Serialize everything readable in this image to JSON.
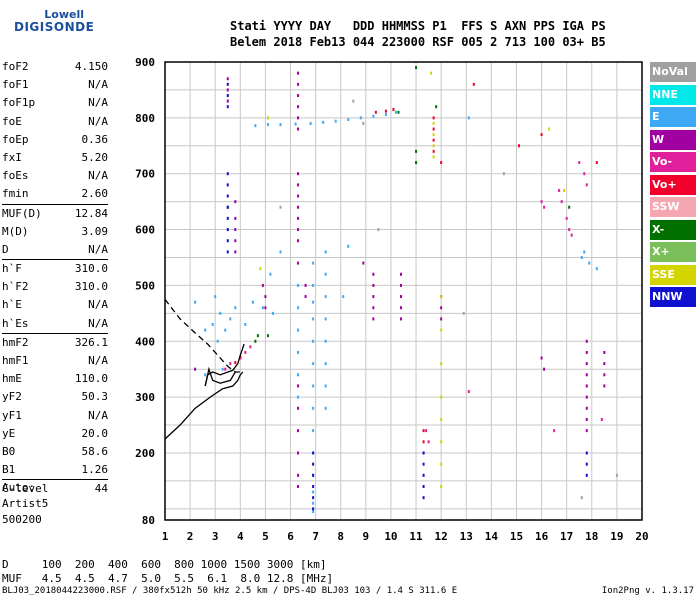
{
  "logo": {
    "line1": "Lowell",
    "line2": "DIGISONDE"
  },
  "header": {
    "line1": "Stati YYYY DAY   DDD HHMMSS P1  FFS S AXN PPS IGA PS",
    "line2": "Belem 2018 Feb13 044 223000 RSF 005 2 713 100 03+ B5"
  },
  "params": [
    [
      [
        "foF2",
        "4.150"
      ],
      [
        "foF1",
        "N/A"
      ],
      [
        "foF1p",
        "N/A"
      ],
      [
        "foE",
        "N/A"
      ],
      [
        "foEp",
        "0.36"
      ],
      [
        "fxI",
        "5.20"
      ],
      [
        "foEs",
        "N/A"
      ],
      [
        "fmin",
        "2.60"
      ]
    ],
    [
      [
        "MUF(D)",
        "12.84"
      ],
      [
        "M(D)",
        "3.09"
      ],
      [
        "D",
        "N/A"
      ]
    ],
    [
      [
        "h`F",
        "310.0"
      ],
      [
        "h`F2",
        "310.0"
      ],
      [
        "h`E",
        "N/A"
      ],
      [
        "h`Es",
        "N/A"
      ]
    ],
    [
      [
        "hmF2",
        "326.1"
      ],
      [
        "hmF1",
        "N/A"
      ],
      [
        "hmE",
        "110.0"
      ],
      [
        "yF2",
        "50.3"
      ],
      [
        "yF1",
        "N/A"
      ],
      [
        "yE",
        "20.0"
      ],
      [
        "B0",
        "58.6"
      ],
      [
        "B1",
        "1.26"
      ]
    ],
    [
      [
        "C-level",
        "44"
      ]
    ]
  ],
  "auto_lines": [
    "Auto:",
    "Artist5",
    "500200"
  ],
  "muf_table": {
    "d_line": "D     100  200  400  600  800 1000 1500 3000 [km]",
    "muf_line": "MUF   4.5  4.5  4.7  5.0  5.5  6.1  8.0 12.8 [MHz]"
  },
  "footer_left": "BLJ03_2018044223000.RSF / 380fx512h 50 kHz 2.5 km / DPS-4D BLJ03 103 / 1.4 S 311.6 E",
  "footer_right": "Ion2Png v. 1.3.17",
  "legend": [
    {
      "label": "NoVal",
      "color": "#a0a0a0"
    },
    {
      "label": "NNE",
      "color": "#00e8e8"
    },
    {
      "label": "E",
      "color": "#3fa9f5"
    },
    {
      "label": "W",
      "color": "#a000a0"
    },
    {
      "label": "Vo-",
      "color": "#e0209a"
    },
    {
      "label": "Vo+",
      "color": "#f0002a"
    },
    {
      "label": "SSW",
      "color": "#f4a7b0"
    },
    {
      "label": "X-",
      "color": "#007000"
    },
    {
      "label": "X+",
      "color": "#7abf5a"
    },
    {
      "label": "SSE",
      "color": "#d4d400"
    },
    {
      "label": "NNW",
      "color": "#1010d0"
    }
  ],
  "chart_data": {
    "type": "scatter",
    "xlabel": "",
    "ylabel": "",
    "xlim": [
      1,
      20
    ],
    "ylim": [
      80,
      900
    ],
    "x_ticks": [
      "1",
      "2",
      "3",
      "4",
      "5",
      "6",
      "7",
      "8",
      "9",
      "10",
      "11",
      "12",
      "13",
      "14",
      "15",
      "16",
      "17",
      "18",
      "19",
      "20"
    ],
    "y_ticks": [
      "80",
      "200",
      "300",
      "400",
      "500",
      "600",
      "700",
      "800",
      "900"
    ],
    "y_tick_values": [
      80,
      200,
      300,
      400,
      500,
      600,
      700,
      800,
      900
    ],
    "grid": true,
    "series": [
      {
        "color": "#3fa9f5",
        "points": [
          [
            4.6,
            786
          ],
          [
            5.1,
            788
          ],
          [
            5.6,
            788
          ],
          [
            6.2,
            789
          ],
          [
            6.8,
            790
          ],
          [
            7.3,
            792
          ],
          [
            7.8,
            794
          ],
          [
            8.3,
            797
          ],
          [
            8.8,
            800
          ],
          [
            9.3,
            803
          ],
          [
            9.8,
            806
          ],
          [
            10.2,
            810
          ],
          [
            3.0,
            480
          ],
          [
            3.2,
            450
          ],
          [
            3.4,
            420
          ],
          [
            3.6,
            440
          ],
          [
            3.8,
            460
          ],
          [
            4.2,
            430
          ],
          [
            4.5,
            470
          ],
          [
            4.9,
            460
          ],
          [
            5.3,
            450
          ],
          [
            2.6,
            420
          ],
          [
            2.9,
            430
          ],
          [
            3.1,
            400
          ],
          [
            6.9,
            540
          ],
          [
            6.9,
            500
          ],
          [
            6.9,
            470
          ],
          [
            6.9,
            440
          ],
          [
            6.9,
            400
          ],
          [
            6.9,
            360
          ],
          [
            6.9,
            320
          ],
          [
            6.9,
            280
          ],
          [
            6.9,
            240
          ],
          [
            6.9,
            200
          ],
          [
            6.9,
            160
          ],
          [
            6.9,
            130
          ],
          [
            6.9,
            110
          ],
          [
            6.9,
            95
          ],
          [
            6.3,
            500
          ],
          [
            6.3,
            460
          ],
          [
            6.3,
            420
          ],
          [
            6.3,
            380
          ],
          [
            6.3,
            340
          ],
          [
            6.3,
            300
          ],
          [
            7.4,
            560
          ],
          [
            7.4,
            520
          ],
          [
            7.4,
            480
          ],
          [
            7.4,
            440
          ],
          [
            7.4,
            400
          ],
          [
            7.4,
            360
          ],
          [
            7.4,
            320
          ],
          [
            7.4,
            280
          ],
          [
            2.2,
            470
          ],
          [
            2.6,
            340
          ],
          [
            3.3,
            350
          ],
          [
            5.2,
            520
          ],
          [
            5.6,
            560
          ],
          [
            8.1,
            480
          ],
          [
            8.3,
            570
          ],
          [
            13.1,
            800
          ],
          [
            17.7,
            560
          ],
          [
            17.9,
            540
          ],
          [
            18.2,
            530
          ],
          [
            17.6,
            550
          ]
        ]
      },
      {
        "color": "#a000a0",
        "points": [
          [
            6.3,
            880
          ],
          [
            6.3,
            860
          ],
          [
            6.3,
            840
          ],
          [
            6.3,
            820
          ],
          [
            6.3,
            800
          ],
          [
            6.3,
            780
          ],
          [
            6.3,
            700
          ],
          [
            6.3,
            680
          ],
          [
            6.3,
            660
          ],
          [
            6.3,
            640
          ],
          [
            6.3,
            620
          ],
          [
            6.3,
            600
          ],
          [
            6.3,
            580
          ],
          [
            6.3,
            540
          ],
          [
            6.3,
            320
          ],
          [
            6.3,
            280
          ],
          [
            6.3,
            240
          ],
          [
            6.3,
            200
          ],
          [
            6.3,
            160
          ],
          [
            6.3,
            140
          ],
          [
            3.8,
            650
          ],
          [
            3.8,
            620
          ],
          [
            3.8,
            600
          ],
          [
            3.8,
            580
          ],
          [
            3.8,
            560
          ],
          [
            9.3,
            520
          ],
          [
            9.3,
            500
          ],
          [
            9.3,
            480
          ],
          [
            9.3,
            460
          ],
          [
            9.3,
            440
          ],
          [
            10.4,
            520
          ],
          [
            10.4,
            500
          ],
          [
            10.4,
            480
          ],
          [
            10.4,
            460
          ],
          [
            10.4,
            440
          ],
          [
            12.0,
            480
          ],
          [
            12.0,
            460
          ],
          [
            12.0,
            440
          ],
          [
            17.8,
            400
          ],
          [
            17.8,
            380
          ],
          [
            17.8,
            360
          ],
          [
            17.8,
            340
          ],
          [
            17.8,
            320
          ],
          [
            17.8,
            300
          ],
          [
            17.8,
            280
          ],
          [
            17.8,
            260
          ],
          [
            17.8,
            240
          ],
          [
            3.5,
            870
          ],
          [
            3.5,
            850
          ],
          [
            3.5,
            830
          ],
          [
            6.6,
            500
          ],
          [
            6.6,
            480
          ],
          [
            4.9,
            500
          ],
          [
            5.0,
            480
          ],
          [
            5.0,
            460
          ],
          [
            18.5,
            380
          ],
          [
            18.5,
            360
          ],
          [
            18.5,
            340
          ],
          [
            18.5,
            320
          ],
          [
            2.2,
            350
          ],
          [
            8.9,
            540
          ],
          [
            16.0,
            370
          ],
          [
            16.1,
            350
          ]
        ]
      },
      {
        "color": "#e0209a",
        "points": [
          [
            4.0,
            370
          ],
          [
            4.2,
            380
          ],
          [
            4.4,
            390
          ],
          [
            3.6,
            360
          ],
          [
            3.4,
            350
          ],
          [
            17.0,
            620
          ],
          [
            17.1,
            600
          ],
          [
            17.2,
            590
          ],
          [
            16.7,
            670
          ],
          [
            16.8,
            650
          ],
          [
            17.7,
            700
          ],
          [
            17.8,
            680
          ],
          [
            16.0,
            650
          ],
          [
            16.1,
            640
          ],
          [
            13.1,
            310
          ],
          [
            11.4,
            240
          ],
          [
            11.5,
            220
          ],
          [
            16.5,
            240
          ],
          [
            17.5,
            720
          ],
          [
            18.4,
            260
          ]
        ]
      },
      {
        "color": "#f0002a",
        "points": [
          [
            9.4,
            810
          ],
          [
            9.8,
            812
          ],
          [
            10.1,
            815
          ],
          [
            11.7,
            800
          ],
          [
            11.7,
            780
          ],
          [
            11.7,
            760
          ],
          [
            11.7,
            740
          ],
          [
            11.3,
            240
          ],
          [
            11.3,
            220
          ],
          [
            11.3,
            200
          ],
          [
            4.0,
            372
          ],
          [
            3.8,
            362
          ],
          [
            13.3,
            860
          ],
          [
            12.0,
            720
          ],
          [
            15.1,
            750
          ],
          [
            16.0,
            770
          ],
          [
            18.2,
            720
          ]
        ]
      },
      {
        "color": "#007000",
        "points": [
          [
            10.3,
            810
          ],
          [
            11.8,
            820
          ],
          [
            11.0,
            890
          ],
          [
            4.6,
            400
          ],
          [
            4.7,
            410
          ],
          [
            5.1,
            410
          ],
          [
            11.0,
            740
          ],
          [
            11.0,
            720
          ],
          [
            3.5,
            640
          ],
          [
            17.1,
            640
          ]
        ]
      },
      {
        "color": "#d4d400",
        "points": [
          [
            11.7,
            790
          ],
          [
            11.7,
            770
          ],
          [
            11.7,
            750
          ],
          [
            11.7,
            730
          ],
          [
            12.0,
            480
          ],
          [
            12.0,
            420
          ],
          [
            12.0,
            360
          ],
          [
            12.0,
            300
          ],
          [
            12.0,
            260
          ],
          [
            12.0,
            220
          ],
          [
            12.0,
            180
          ],
          [
            12.0,
            140
          ],
          [
            11.6,
            880
          ],
          [
            4.8,
            530
          ],
          [
            5.1,
            800
          ],
          [
            16.9,
            670
          ],
          [
            16.3,
            780
          ]
        ]
      },
      {
        "color": "#1010d0",
        "points": [
          [
            3.5,
            860
          ],
          [
            3.5,
            840
          ],
          [
            3.5,
            820
          ],
          [
            3.5,
            700
          ],
          [
            3.5,
            680
          ],
          [
            3.5,
            660
          ],
          [
            3.5,
            640
          ],
          [
            3.5,
            620
          ],
          [
            3.5,
            600
          ],
          [
            3.5,
            580
          ],
          [
            3.5,
            560
          ],
          [
            11.3,
            200
          ],
          [
            11.3,
            180
          ],
          [
            11.3,
            160
          ],
          [
            11.3,
            140
          ],
          [
            11.3,
            120
          ],
          [
            17.8,
            200
          ],
          [
            17.8,
            180
          ],
          [
            17.8,
            160
          ],
          [
            6.9,
            200
          ],
          [
            6.9,
            180
          ],
          [
            6.9,
            160
          ],
          [
            6.9,
            140
          ],
          [
            6.9,
            120
          ],
          [
            6.9,
            100
          ]
        ]
      },
      {
        "color": "#a0a0a0",
        "points": [
          [
            8.5,
            830
          ],
          [
            8.9,
            790
          ],
          [
            14.5,
            700
          ],
          [
            12.9,
            450
          ],
          [
            5.6,
            640
          ],
          [
            9.5,
            600
          ],
          [
            17.6,
            120
          ],
          [
            19.0,
            160
          ]
        ]
      }
    ],
    "fitted_profile": {
      "color": "#000000",
      "points": [
        [
          2.6,
          320
        ],
        [
          2.7,
          340
        ],
        [
          2.9,
          345
        ],
        [
          3.2,
          340
        ],
        [
          3.5,
          345
        ],
        [
          3.7,
          348
        ],
        [
          3.9,
          360
        ],
        [
          4.0,
          375
        ],
        [
          4.15,
          395
        ]
      ]
    },
    "fitted_branch": {
      "color": "#000000",
      "points": [
        [
          2.6,
          320
        ],
        [
          2.75,
          350
        ],
        [
          2.9,
          330
        ],
        [
          3.2,
          325
        ],
        [
          3.6,
          330
        ],
        [
          3.8,
          345
        ]
      ]
    },
    "lower_trace": {
      "color": "#000000",
      "points": [
        [
          1.0,
          225
        ],
        [
          1.6,
          250
        ],
        [
          2.2,
          280
        ],
        [
          2.8,
          300
        ],
        [
          3.3,
          315
        ],
        [
          3.7,
          320
        ],
        [
          3.9,
          330
        ],
        [
          4.0,
          340
        ],
        [
          4.1,
          345
        ]
      ]
    },
    "dashed_trace": {
      "color": "#000000",
      "points": [
        [
          1.0,
          475
        ],
        [
          1.6,
          440
        ],
        [
          2.2,
          415
        ],
        [
          2.7,
          395
        ],
        [
          3.1,
          375
        ],
        [
          3.5,
          355
        ],
        [
          3.8,
          345
        ],
        [
          4.0,
          345
        ]
      ]
    }
  }
}
